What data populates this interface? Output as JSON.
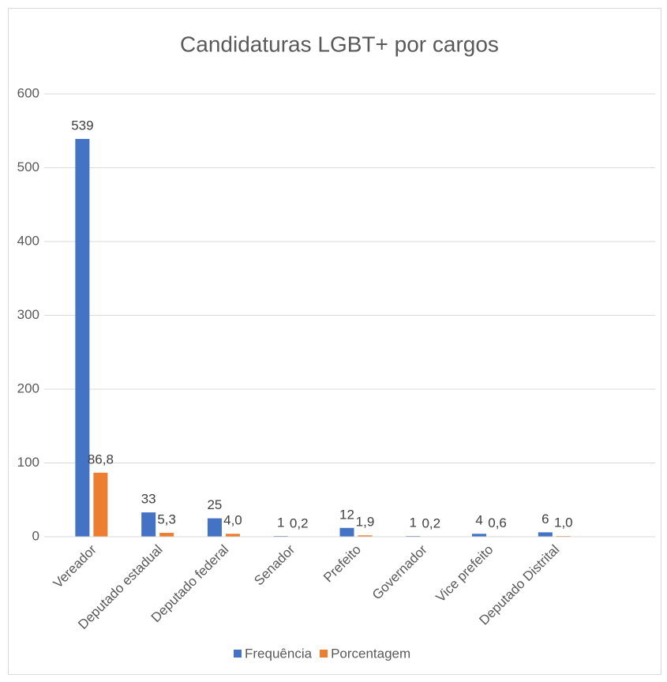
{
  "chart_data": {
    "type": "bar",
    "title": "Candidaturas LGBT+ por cargos",
    "categories": [
      "Vereador",
      "Deputado estadual",
      "Deputado federal",
      "Senador",
      "Prefeito",
      "Governador",
      "Vice prefeito",
      "Deputado Distrital",
      null
    ],
    "series": [
      {
        "name": "Frequência",
        "color": "#4472c4",
        "values": [
          539,
          33,
          25,
          1,
          12,
          1,
          4,
          6,
          null
        ]
      },
      {
        "name": "Porcentagem",
        "color": "#ed7d31",
        "values": [
          86.8,
          5.3,
          4.0,
          0.2,
          1.9,
          0.2,
          0.6,
          1.0,
          null
        ],
        "value_labels": [
          "86,8",
          "5,3",
          "4,0",
          "0,2",
          "1,9",
          "0,2",
          "0,6",
          "1,0",
          null
        ]
      }
    ],
    "ylim": [
      0,
      600
    ],
    "yticks": [
      0,
      100,
      200,
      300,
      400,
      500,
      600
    ],
    "grid": true,
    "legend": "bottom"
  }
}
